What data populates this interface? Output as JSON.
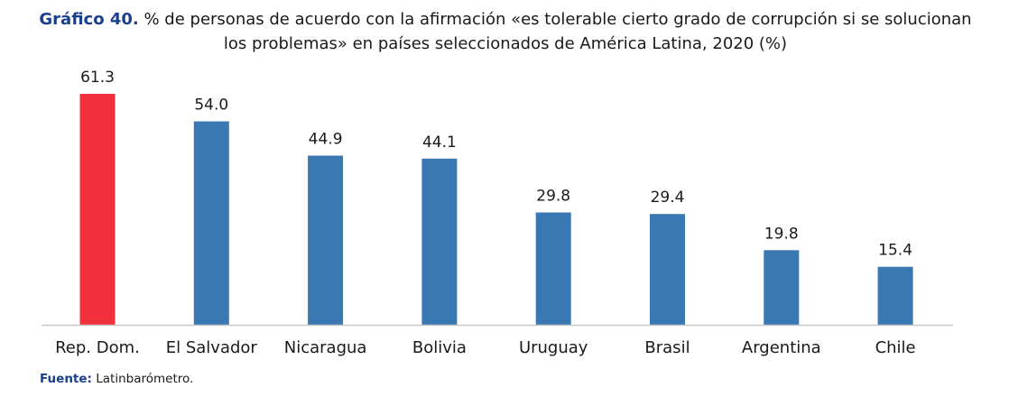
{
  "chart_data": {
    "type": "bar",
    "title_prefix": "Gráfico 40.",
    "title": "% de personas de acuerdo con la afirmación «es tolerable cierto grado de corrupción si se solucionan los problemas» en países seleccionados de América Latina, 2020 (%)",
    "categories": [
      "Rep. Dom.",
      "El Salvador",
      "Nicaragua",
      "Bolivia",
      "Uruguay",
      "Brasil",
      "Argentina",
      "Chile"
    ],
    "values": [
      61.3,
      54.0,
      44.9,
      44.1,
      29.8,
      29.4,
      19.8,
      15.4
    ],
    "value_labels": [
      "61.3",
      "54.0",
      "44.9",
      "44.1",
      "29.8",
      "29.4",
      "19.8",
      "15.4"
    ],
    "highlight_index": 0,
    "colors": {
      "bar": "#3a78b3",
      "highlight": "#f0303a",
      "axis": "#c8c8c8"
    },
    "xlabel": "",
    "ylabel": "",
    "ylim": [
      0,
      61.3
    ],
    "grid": false,
    "legend": "none"
  },
  "source": {
    "label": "Fuente:",
    "text": "Latinbarómetro."
  }
}
